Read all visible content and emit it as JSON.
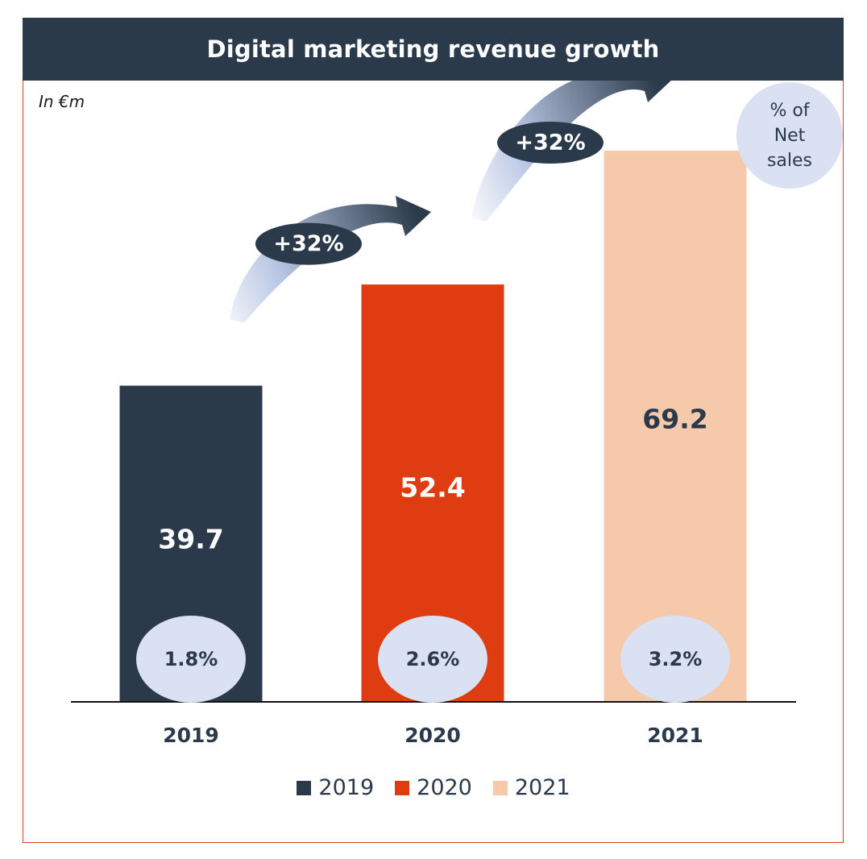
{
  "chart_data": {
    "type": "bar",
    "title": "Digital marketing revenue growth",
    "unit_label": "In €m",
    "categories": [
      "2019",
      "2020",
      "2021"
    ],
    "values": [
      39.7,
      52.4,
      69.2
    ],
    "value_labels": [
      "39.7",
      "52.4",
      "69.2"
    ],
    "share_of_net_sales": [
      "1.8%",
      "2.6%",
      "3.2%"
    ],
    "share_legend": "% of\nNet\nsales",
    "growth_labels": [
      "+32%",
      "+32%"
    ],
    "colors": [
      "#2b3a4a",
      "#e03c12",
      "#f6c9ab"
    ],
    "value_label_colors": [
      "#ffffff",
      "#ffffff",
      "#2b3a4a"
    ],
    "ylim": [
      0,
      78
    ],
    "legend": {
      "placement": "bottom",
      "entries": [
        "2019",
        "2020",
        "2021"
      ]
    }
  }
}
